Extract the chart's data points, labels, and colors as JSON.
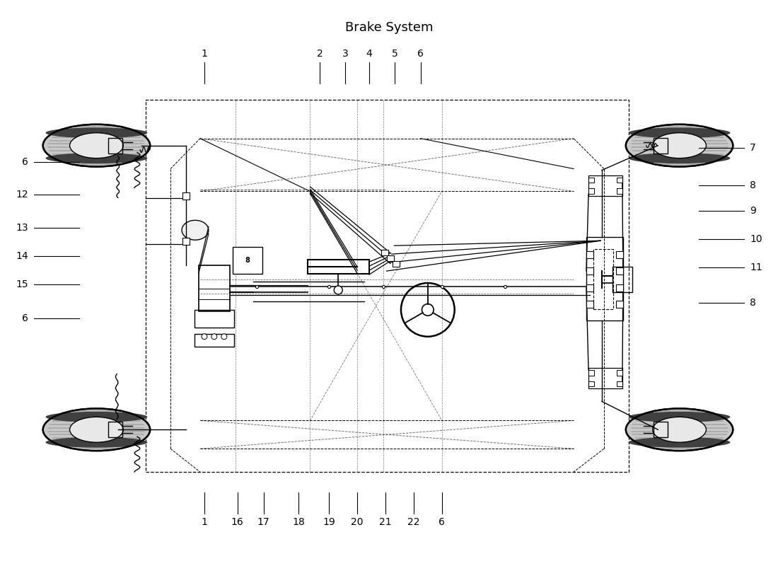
{
  "title": "Brake System",
  "bg_color": "#ffffff",
  "lc": "#000000",
  "figsize": [
    11.0,
    8.0
  ],
  "dpi": 100,
  "top_numbers": [
    "1",
    "2",
    "3",
    "4",
    "5",
    "6"
  ],
  "top_x": [
    2.88,
    4.52,
    4.88,
    5.22,
    5.58,
    5.95
  ],
  "right_numbers": [
    "7",
    "8",
    "9",
    "10",
    "11",
    "8"
  ],
  "right_y": [
    5.92,
    5.38,
    5.02,
    4.62,
    4.22,
    3.72
  ],
  "left_numbers": [
    "6",
    "12",
    "13",
    "14",
    "15",
    "6"
  ],
  "left_y": [
    5.72,
    5.25,
    4.78,
    4.38,
    3.98,
    3.5
  ],
  "bottom_numbers": [
    "1",
    "16",
    "17",
    "18",
    "19",
    "20",
    "21",
    "22",
    "6"
  ],
  "bottom_x": [
    2.88,
    3.35,
    3.72,
    4.22,
    4.65,
    5.05,
    5.45,
    5.85,
    6.25
  ]
}
